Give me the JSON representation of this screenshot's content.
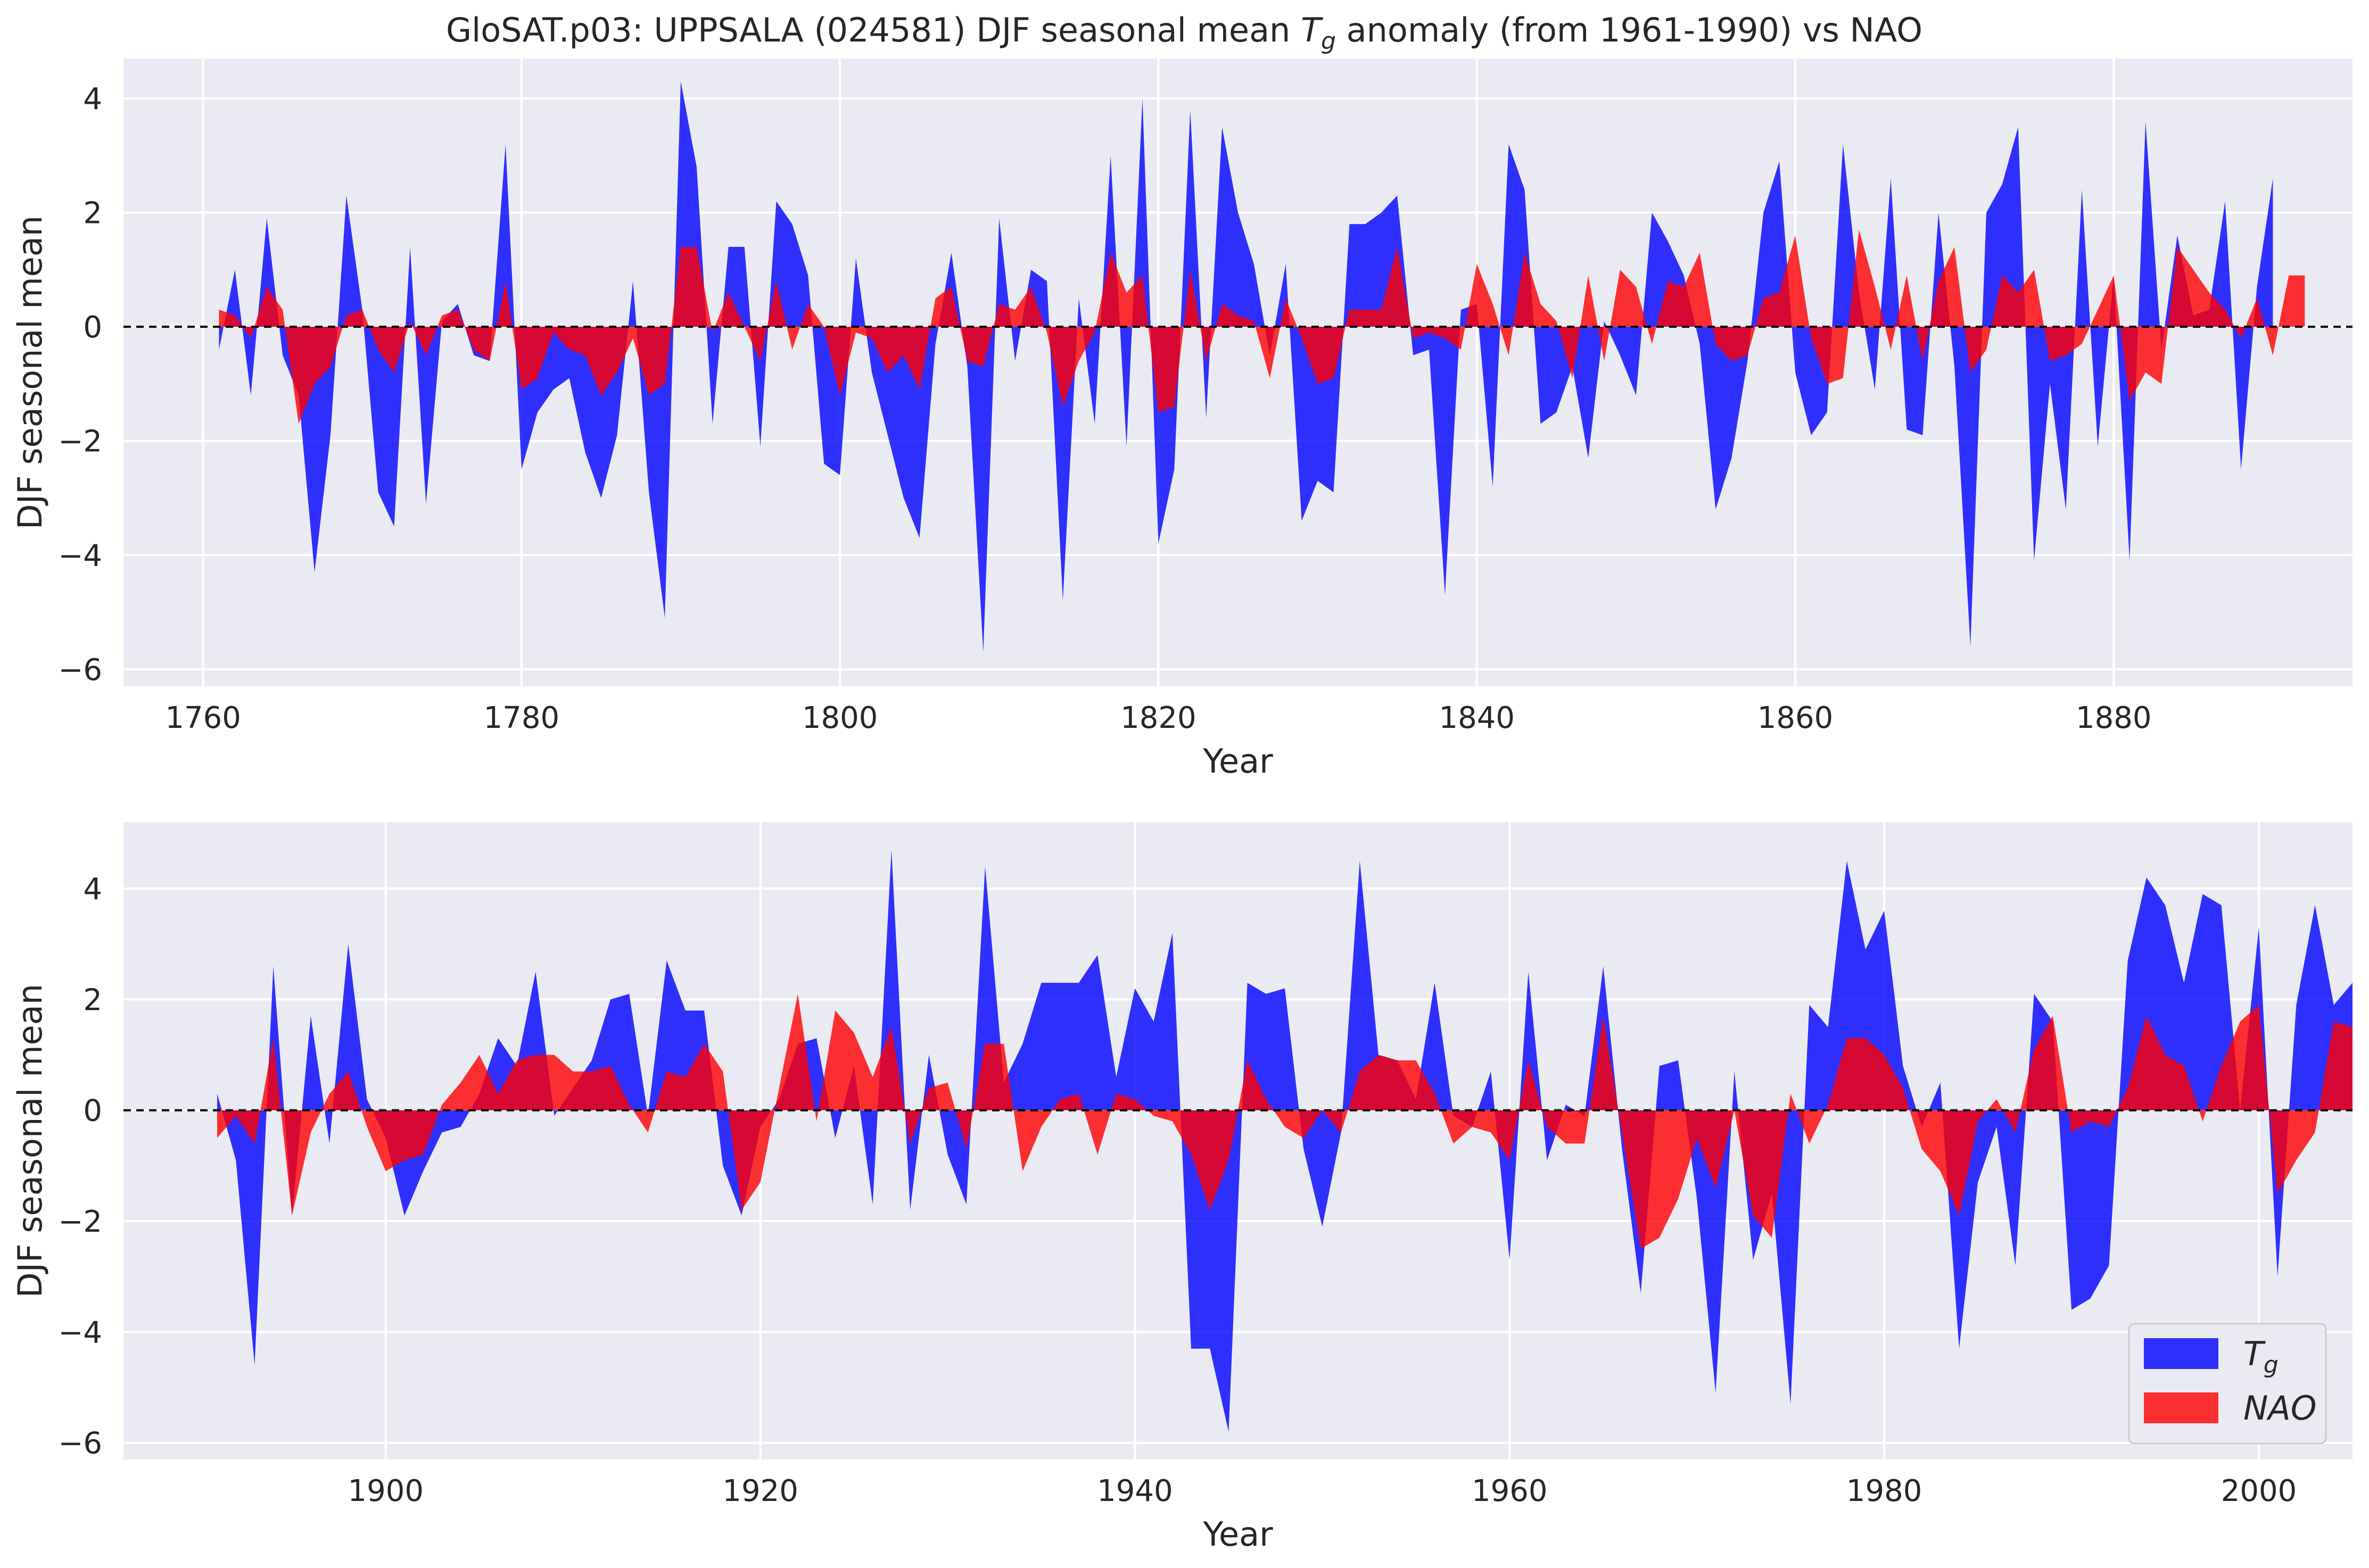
{
  "figure": {
    "title_prefix": "GloSAT.p03: UPPSALA (024581) DJF seasonal mean ",
    "title_var": "T",
    "title_sub": "g",
    "title_suffix": " anomaly (from 1961-1990) vs NAO"
  },
  "colors": {
    "tg": "#0000ff",
    "nao": "#ff0000",
    "axes_bg": "#eaeaf2",
    "grid": "#ffffff",
    "zero_line": "#000000"
  },
  "legend": {
    "location": "lower right",
    "tg_var": "T",
    "tg_sub": "g",
    "nao_label": "NAO"
  },
  "chart_data": [
    {
      "type": "area",
      "xlabel": "Year",
      "ylabel": "DJF seasonal mean",
      "xlim": [
        1755,
        1895
      ],
      "ylim": [
        -6.3,
        4.7
      ],
      "xticks": [
        "1760",
        "1780",
        "1800",
        "1820",
        "1840",
        "1860",
        "1880"
      ],
      "yticks": [
        "−6",
        "−4",
        "−2",
        "0",
        "2",
        "4"
      ],
      "grid": true,
      "zero_line": true,
      "x_start": 1761,
      "series": [
        {
          "key": "tg",
          "values": [
            -0.4,
            1.0,
            -1.2,
            1.9,
            -0.5,
            -1.2,
            -4.3,
            -1.9,
            2.3,
            0.3,
            -2.9,
            -3.5,
            1.4,
            -3.1,
            0.1,
            0.4,
            -0.5,
            -0.6,
            3.2,
            -2.5,
            -1.5,
            -1.1,
            -0.9,
            -2.2,
            -3.0,
            -1.9,
            0.8,
            -2.9,
            -5.1,
            4.3,
            2.8,
            -1.7,
            1.4,
            1.4,
            -2.1,
            2.2,
            1.8,
            0.9,
            -2.4,
            -2.6,
            1.2,
            -0.8,
            -1.9,
            -3.0,
            -3.7,
            -0.3,
            1.3,
            -0.7,
            -5.7,
            1.9,
            -0.6,
            1.0,
            0.8,
            -4.8,
            0.5,
            -1.7,
            3.0,
            -2.1,
            4.0,
            -3.8,
            -2.5,
            3.8,
            -1.6,
            3.5,
            2.0,
            1.1,
            -0.5,
            1.1,
            -3.4,
            -2.7,
            -2.9,
            1.8,
            1.8,
            2.0,
            2.3,
            -0.5,
            -0.4,
            -4.7,
            0.3,
            0.4,
            -2.8,
            3.2,
            2.4,
            -1.7,
            -1.5,
            -0.7,
            -2.3,
            0.1,
            -0.5,
            -1.2,
            2.0,
            1.5,
            0.9,
            -0.3,
            -3.2,
            -2.3,
            -0.6,
            2.0,
            2.9,
            -0.8,
            -1.9,
            -1.5,
            3.2,
            0.6,
            -1.1,
            2.6,
            -1.8,
            -1.9,
            2.0,
            -0.7,
            -5.6,
            2.0,
            2.5,
            3.5,
            -4.1,
            -1.0,
            -3.2,
            2.4,
            -2.1,
            0.9,
            -4.1,
            3.6,
            -0.4,
            1.6,
            0.2,
            0.3,
            2.2,
            -2.5,
            0.7,
            2.6
          ]
        },
        {
          "key": "nao",
          "values": [
            0.3,
            0.2,
            -0.2,
            0.7,
            0.3,
            -1.7,
            -1.0,
            -0.7,
            0.2,
            0.3,
            -0.4,
            -0.8,
            0.1,
            -0.5,
            0.2,
            0.3,
            -0.4,
            -0.6,
            0.8,
            -1.1,
            -0.9,
            -0.1,
            -0.4,
            -0.5,
            -1.2,
            -0.8,
            -0.2,
            -1.2,
            -1.0,
            1.4,
            1.4,
            -0.1,
            0.6,
            0.0,
            -0.6,
            0.8,
            -0.4,
            0.4,
            0.0,
            -1.2,
            -0.1,
            -0.2,
            -0.8,
            -0.5,
            -1.1,
            0.5,
            0.7,
            -0.6,
            -0.7,
            0.4,
            0.3,
            0.7,
            -0.1,
            -1.4,
            -0.6,
            -0.1,
            1.3,
            0.6,
            0.9,
            -1.5,
            -1.4,
            1.0,
            -0.6,
            0.4,
            0.2,
            0.1,
            -0.9,
            0.5,
            -0.2,
            -1.0,
            -0.9,
            0.3,
            0.3,
            0.3,
            1.4,
            -0.2,
            -0.1,
            -0.2,
            -0.4,
            1.1,
            0.4,
            -0.5,
            1.3,
            0.4,
            0.1,
            -0.9,
            0.9,
            -0.6,
            1.0,
            0.7,
            -0.3,
            0.8,
            0.7,
            1.3,
            -0.3,
            -0.6,
            -0.5,
            0.5,
            0.6,
            1.6,
            -0.2,
            -1.0,
            -0.9,
            1.7,
            0.7,
            -0.4,
            0.9,
            -0.6,
            0.8,
            1.4,
            -0.8,
            -0.4,
            0.9,
            0.6,
            1.0,
            -0.6,
            -0.5,
            -0.3,
            0.3,
            0.9,
            -1.3,
            -0.8,
            -1.0,
            1.4,
            1.0,
            0.6,
            0.3,
            -0.2,
            0.5,
            -0.5,
            0.9,
            0.9
          ]
        }
      ]
    },
    {
      "type": "area",
      "xlabel": "Year",
      "ylabel": "DJF seasonal mean",
      "xlim": [
        1886,
        2005
      ],
      "ylim": [
        -6.3,
        5.2
      ],
      "xticks": [
        "1900",
        "1920",
        "1940",
        "1960",
        "1980",
        "2000"
      ],
      "yticks": [
        "−6",
        "−4",
        "−2",
        "0",
        "2",
        "4"
      ],
      "grid": true,
      "zero_line": true,
      "x_start": 1891,
      "series": [
        {
          "key": "tg",
          "values": [
            0.3,
            -0.9,
            -4.6,
            2.6,
            -1.9,
            1.7,
            -0.6,
            3.0,
            0.2,
            -0.5,
            -1.9,
            -1.1,
            -0.4,
            -0.3,
            0.3,
            1.3,
            0.8,
            2.5,
            -0.1,
            0.4,
            0.9,
            2.0,
            2.1,
            -0.1,
            2.7,
            1.8,
            1.8,
            -1.0,
            -1.9,
            -0.3,
            0.2,
            1.2,
            1.3,
            -0.5,
            0.8,
            -1.7,
            4.7,
            -1.8,
            1.0,
            -0.8,
            -1.7,
            4.4,
            0.5,
            1.2,
            2.3,
            2.3,
            2.3,
            2.8,
            0.6,
            2.2,
            1.6,
            3.2,
            -4.3,
            -4.3,
            -5.8,
            2.3,
            2.1,
            2.2,
            -0.7,
            -2.1,
            -0.4,
            4.5,
            1.0,
            0.9,
            0.2,
            2.3,
            -0.1,
            -0.3,
            0.7,
            -2.7,
            2.5,
            -0.9,
            0.1,
            -0.1,
            2.6,
            -0.7,
            -3.3,
            0.8,
            0.9,
            -1.6,
            -5.1,
            0.7,
            -2.7,
            -1.5,
            -5.3,
            1.9,
            1.5,
            4.5,
            2.9,
            3.6,
            0.8,
            -0.3,
            0.5,
            -4.3,
            -1.3,
            -0.3,
            -2.8,
            2.1,
            1.6,
            -3.6,
            -3.4,
            -2.8,
            2.7,
            4.2,
            3.7,
            2.3,
            3.9,
            3.7,
            0.0,
            3.3,
            -3.0,
            1.9,
            3.7,
            1.9,
            2.3
          ]
        },
        {
          "key": "nao",
          "values": [
            -0.5,
            -0.1,
            -0.6,
            1.3,
            -1.9,
            -0.4,
            0.3,
            0.7,
            -0.3,
            -1.1,
            -0.9,
            -0.8,
            0.1,
            0.5,
            1.0,
            0.3,
            0.9,
            1.0,
            1.0,
            0.7,
            0.7,
            0.8,
            0.1,
            -0.4,
            0.7,
            0.6,
            1.2,
            0.7,
            -1.8,
            -1.3,
            0.4,
            2.1,
            -0.2,
            1.8,
            1.4,
            0.6,
            1.5,
            -0.6,
            0.4,
            0.5,
            -0.7,
            1.2,
            1.2,
            -1.1,
            -0.3,
            0.2,
            0.3,
            -0.8,
            0.3,
            0.2,
            -0.1,
            -0.2,
            -0.8,
            -1.8,
            -0.9,
            0.9,
            0.2,
            -0.3,
            -0.5,
            0.0,
            -0.4,
            0.7,
            1.0,
            0.9,
            0.9,
            0.3,
            -0.6,
            -0.3,
            -0.4,
            -0.9,
            0.9,
            -0.3,
            -0.6,
            -0.6,
            1.7,
            -0.4,
            -2.5,
            -2.3,
            -1.6,
            -0.5,
            -1.4,
            0.0,
            -1.9,
            -2.3,
            0.3,
            -0.6,
            0.1,
            1.3,
            1.3,
            1.0,
            0.4,
            -0.7,
            -1.1,
            -1.9,
            -0.2,
            0.2,
            -0.4,
            1.1,
            1.7,
            -0.4,
            -0.2,
            -0.3,
            0.4,
            1.7,
            1.0,
            0.8,
            -0.2,
            0.8,
            1.6,
            1.9,
            -1.5,
            -0.9,
            -0.4,
            1.6,
            1.5
          ]
        }
      ]
    }
  ]
}
